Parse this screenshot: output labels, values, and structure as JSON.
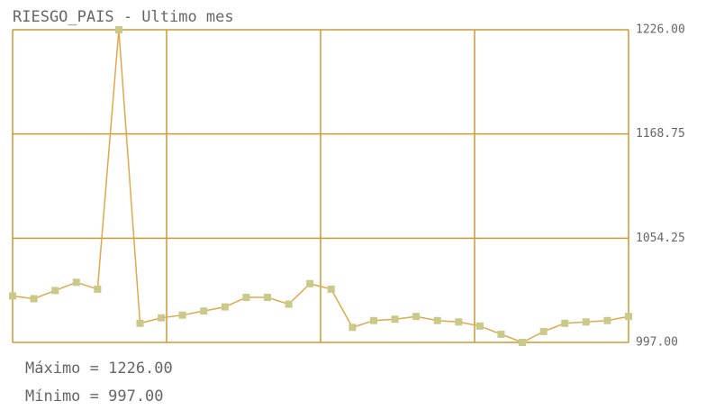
{
  "chart_data": {
    "type": "line",
    "title": "RIESGO_PAIS - Ultimo mes",
    "values": [
      1031,
      1029,
      1035,
      1041,
      1036,
      1226,
      1011,
      1015,
      1017,
      1020,
      1023,
      1030,
      1030,
      1025,
      1040,
      1036,
      1008,
      1013,
      1014,
      1016,
      1013,
      1012,
      1009,
      1003,
      997,
      1005,
      1011,
      1012,
      1013,
      1016
    ],
    "color": "#e0a84a",
    "marker_color": "#c9c98a",
    "grid_color": "#cc9933",
    "ylim": [
      997,
      1226
    ],
    "yticks": [
      {
        "value": 1226,
        "label": "1226.00"
      },
      1168.75,
      1054.25,
      {
        "value": 997,
        "label": "997.00"
      }
    ],
    "grid": true,
    "annotations": [
      "Máximo = 1226.00",
      "Mínimo = 997.00"
    ]
  }
}
